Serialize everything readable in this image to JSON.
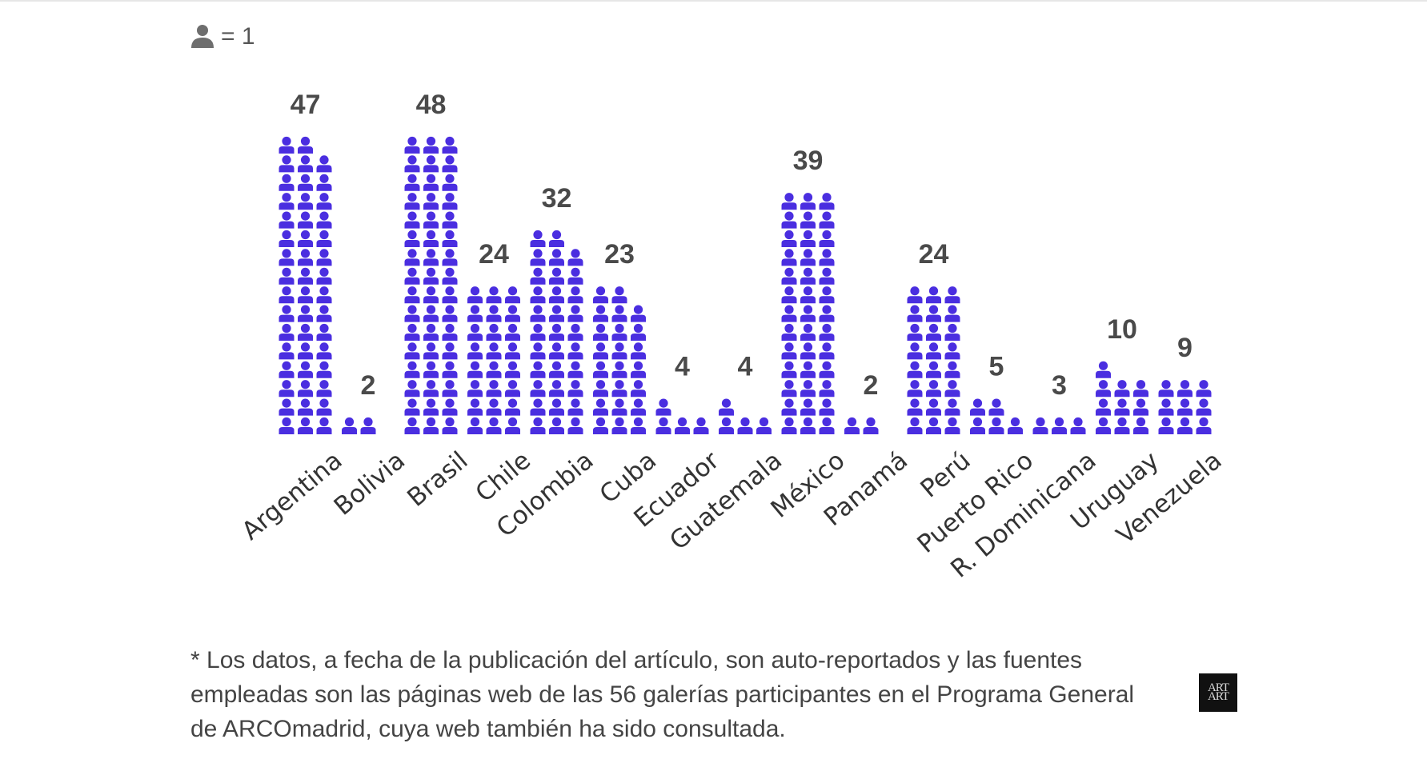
{
  "legend": {
    "icon": "person-icon",
    "text": "= 1"
  },
  "colors": {
    "icon_fill": "#4a2ee0",
    "label_text": "#4a4a4a",
    "legend_icon": "#6e6e6e"
  },
  "chart_data": {
    "type": "pictogram",
    "unit": "1 person per icon",
    "categories": [
      "Argentina",
      "Bolivia",
      "Brasil",
      "Chile",
      "Colombia",
      "Cuba",
      "Ecuador",
      "Guatemala",
      "México",
      "Panamá",
      "Perú",
      "Puerto Rico",
      "R. Dominicana",
      "Uruguay",
      "Venezuela"
    ],
    "values": [
      47,
      2,
      48,
      24,
      32,
      23,
      4,
      4,
      39,
      2,
      24,
      5,
      3,
      10,
      9
    ],
    "icons_per_row": 3
  },
  "footnote": "* Los datos, a fecha de la publicación del artículo, son auto-reportados y las fuentes empleadas son las páginas web de las 56 galerías participantes en el Programa General de ARCOmadrid, cuya web también ha sido consultada.",
  "logo": {
    "line1": "ART",
    "line2": "ART"
  }
}
